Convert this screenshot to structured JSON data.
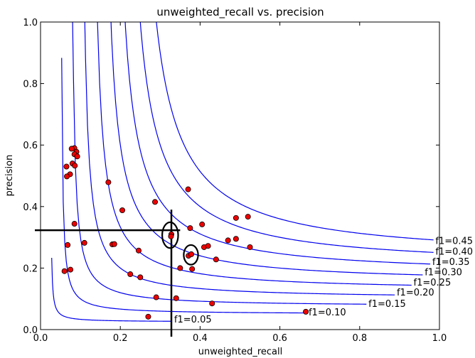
{
  "chart_data": {
    "type": "scatter",
    "title": "unweighted_recall vs. precision",
    "xlabel": "unweighted_recall",
    "ylabel": "precision",
    "xlim": [
      0.0,
      1.0
    ],
    "ylim": [
      0.0,
      1.0
    ],
    "x_ticks": [
      "0.0",
      "0.2",
      "0.4",
      "0.6",
      "0.8",
      "1.0"
    ],
    "y_ticks": [
      "0.0",
      "0.2",
      "0.4",
      "0.6",
      "0.8",
      "1.0"
    ],
    "grid": false,
    "point_color": "#ee0000",
    "curve_color": "#0000ee",
    "points": [
      {
        "x": 0.085,
        "y": 0.59
      },
      {
        "x": 0.078,
        "y": 0.588
      },
      {
        "x": 0.09,
        "y": 0.578
      },
      {
        "x": 0.085,
        "y": 0.57
      },
      {
        "x": 0.092,
        "y": 0.563
      },
      {
        "x": 0.08,
        "y": 0.54
      },
      {
        "x": 0.086,
        "y": 0.533
      },
      {
        "x": 0.065,
        "y": 0.53
      },
      {
        "x": 0.074,
        "y": 0.505
      },
      {
        "x": 0.066,
        "y": 0.498
      },
      {
        "x": 0.085,
        "y": 0.344
      },
      {
        "x": 0.068,
        "y": 0.275
      },
      {
        "x": 0.11,
        "y": 0.282
      },
      {
        "x": 0.06,
        "y": 0.19
      },
      {
        "x": 0.075,
        "y": 0.195
      },
      {
        "x": 0.17,
        "y": 0.479
      },
      {
        "x": 0.205,
        "y": 0.388
      },
      {
        "x": 0.18,
        "y": 0.277
      },
      {
        "x": 0.185,
        "y": 0.278
      },
      {
        "x": 0.287,
        "y": 0.415
      },
      {
        "x": 0.37,
        "y": 0.456
      },
      {
        "x": 0.328,
        "y": 0.31
      },
      {
        "x": 0.327,
        "y": 0.303
      },
      {
        "x": 0.375,
        "y": 0.33
      },
      {
        "x": 0.405,
        "y": 0.342
      },
      {
        "x": 0.246,
        "y": 0.257
      },
      {
        "x": 0.225,
        "y": 0.18
      },
      {
        "x": 0.25,
        "y": 0.17
      },
      {
        "x": 0.371,
        "y": 0.24
      },
      {
        "x": 0.378,
        "y": 0.245
      },
      {
        "x": 0.35,
        "y": 0.2
      },
      {
        "x": 0.38,
        "y": 0.197
      },
      {
        "x": 0.41,
        "y": 0.268
      },
      {
        "x": 0.42,
        "y": 0.272
      },
      {
        "x": 0.44,
        "y": 0.228
      },
      {
        "x": 0.49,
        "y": 0.363
      },
      {
        "x": 0.52,
        "y": 0.367
      },
      {
        "x": 0.47,
        "y": 0.29
      },
      {
        "x": 0.49,
        "y": 0.295
      },
      {
        "x": 0.525,
        "y": 0.268
      },
      {
        "x": 0.29,
        "y": 0.105
      },
      {
        "x": 0.34,
        "y": 0.102
      },
      {
        "x": 0.27,
        "y": 0.042
      },
      {
        "x": 0.43,
        "y": 0.085
      },
      {
        "x": 0.665,
        "y": 0.058
      }
    ],
    "iso_f1_curves": [
      {
        "f1": 0.05,
        "label": "f1=0.05",
        "label_pos": [
          0.335,
          0.035
        ]
      },
      {
        "f1": 0.1,
        "label": "f1=0.10",
        "label_pos": [
          0.672,
          0.058
        ]
      },
      {
        "f1": 0.15,
        "label": "f1=0.15",
        "label_pos": [
          0.822,
          0.085
        ]
      },
      {
        "f1": 0.2,
        "label": "f1=0.20",
        "label_pos": [
          0.893,
          0.122
        ]
      },
      {
        "f1": 0.25,
        "label": "f1=0.25",
        "label_pos": [
          0.935,
          0.155
        ]
      },
      {
        "f1": 0.3,
        "label": "f1=0.30",
        "label_pos": [
          0.963,
          0.188
        ]
      },
      {
        "f1": 0.35,
        "label": "f1=0.35",
        "label_pos": [
          0.982,
          0.222
        ]
      },
      {
        "f1": 0.4,
        "label": "f1=0.40",
        "label_pos": [
          0.99,
          0.255
        ]
      },
      {
        "f1": 0.45,
        "label": "f1=0.45",
        "label_pos": [
          0.99,
          0.29
        ]
      }
    ],
    "crosshair": {
      "x": 0.328,
      "y": 0.323,
      "x_min": 0.0,
      "x_max": 0.35,
      "y_min": 0.0,
      "y_max": 0.39
    },
    "highlights": [
      {
        "x": 0.325,
        "y": 0.307,
        "rx": 0.02,
        "ry": 0.042
      },
      {
        "x": 0.377,
        "y": 0.243,
        "rx": 0.018,
        "ry": 0.032
      }
    ]
  }
}
